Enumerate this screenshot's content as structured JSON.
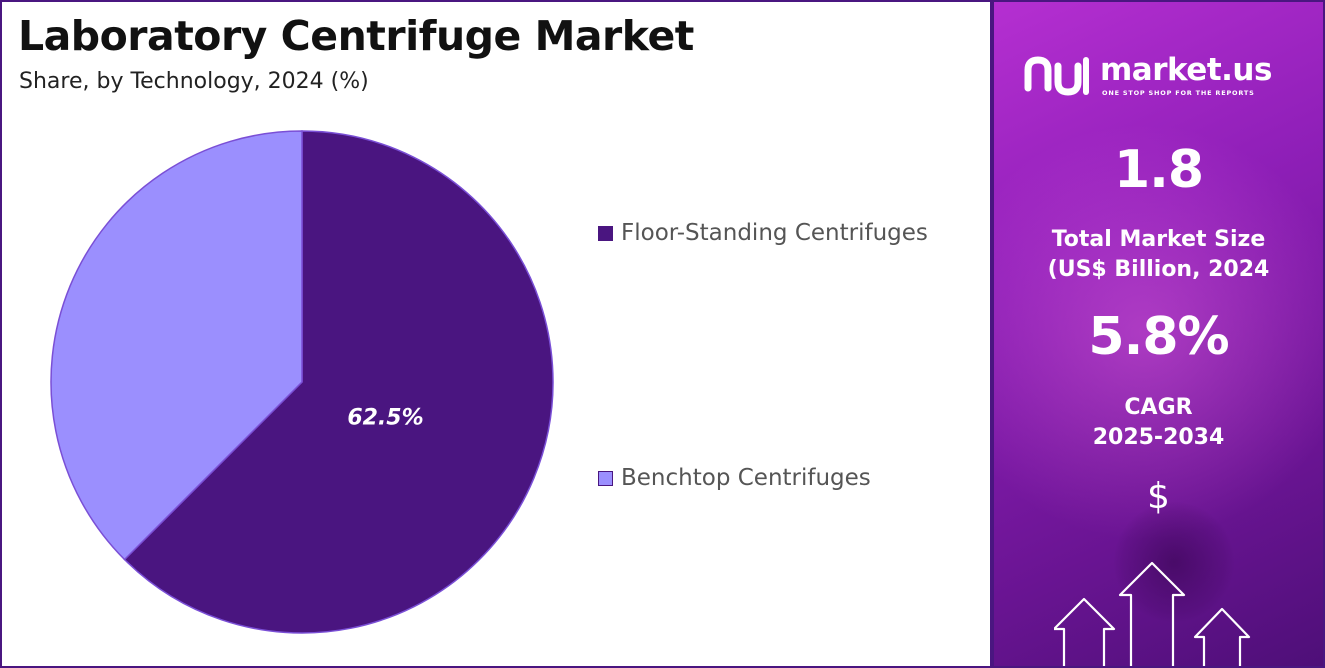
{
  "chart_data": {
    "type": "pie",
    "title": "Laboratory Centrifuge Market",
    "subtitle": "Share, by Technology, 2024 (%)",
    "slices": [
      {
        "name": "Floor-Standing Centrifuges",
        "value": 62.5,
        "label": "62.5%",
        "color": "#4a1580"
      },
      {
        "name": "Benchtop Centrifuges",
        "value": 37.5,
        "label": "",
        "color": "#9b8ffe"
      }
    ],
    "legend_position": "right",
    "start_angle_deg": 0,
    "direction": "clockwise"
  },
  "panel": {
    "brand": "market.us",
    "tagline": "ONE STOP SHOP FOR THE REPORTS",
    "market_size_value": "1.8",
    "market_size_label_line1": "Total Market Size",
    "market_size_label_line2": "(US$ Billion, 2024",
    "cagr_value": "5.8%",
    "cagr_label_line1": "CAGR",
    "cagr_label_line2": "2025-2034",
    "currency_symbol": "$",
    "background_color": "#8f1fb8"
  }
}
